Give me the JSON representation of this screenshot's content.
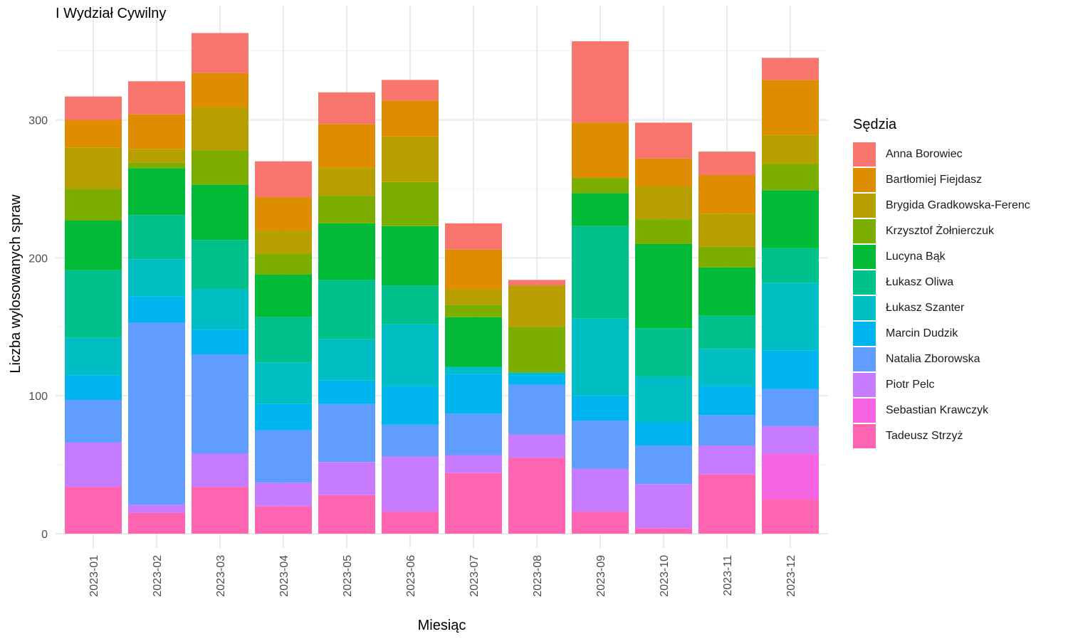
{
  "title": "I Wydział Cywilny",
  "chart_data": {
    "type": "bar",
    "stacked": true,
    "xlabel": "Miesiąc",
    "ylabel": "Liczba wylosowanych spraw",
    "ylim": [
      0,
      380
    ],
    "yticks": [
      0,
      100,
      200,
      300
    ],
    "grid": true,
    "legend_title": "Sędzia",
    "legend_position": "right",
    "categories": [
      "2023-01",
      "2023-02",
      "2023-03",
      "2023-04",
      "2023-05",
      "2023-06",
      "2023-07",
      "2023-08",
      "2023-09",
      "2023-10",
      "2023-11",
      "2023-12"
    ],
    "series": [
      {
        "name": "Anna Borowiec",
        "color": "#F8766D",
        "values": [
          17,
          24,
          29,
          26,
          23,
          15,
          19,
          4,
          59,
          26,
          17,
          16
        ]
      },
      {
        "name": "Bartłomiej Fiejdasz",
        "color": "#DE8C00",
        "values": [
          20,
          25,
          25,
          24,
          32,
          26,
          29,
          0,
          40,
          20,
          28,
          40
        ]
      },
      {
        "name": "Brygida Gradkowska-Ferenc",
        "color": "#B79F00",
        "values": [
          30,
          10,
          31,
          17,
          20,
          33,
          11,
          30,
          0,
          24,
          24,
          21
        ]
      },
      {
        "name": "Krzysztof Żołnierczuk",
        "color": "#7CAE00",
        "values": [
          23,
          4,
          25,
          15,
          20,
          32,
          9,
          33,
          11,
          18,
          15,
          19
        ]
      },
      {
        "name": "Lucyna Bąk",
        "color": "#00BA38",
        "values": [
          36,
          34,
          40,
          31,
          41,
          43,
          36,
          0,
          24,
          61,
          35,
          42
        ]
      },
      {
        "name": "Łukasz Oliwa",
        "color": "#00C08B",
        "values": [
          49,
          32,
          36,
          33,
          43,
          28,
          0,
          0,
          67,
          35,
          24,
          25
        ]
      },
      {
        "name": "Łukasz Szanter",
        "color": "#00BFC4",
        "values": [
          27,
          27,
          29,
          30,
          30,
          45,
          5,
          2,
          56,
          33,
          27,
          49
        ]
      },
      {
        "name": "Marcin Dudzik",
        "color": "#00B4F0",
        "values": [
          18,
          19,
          18,
          19,
          17,
          28,
          29,
          7,
          18,
          17,
          21,
          28
        ]
      },
      {
        "name": "Natalia Zborowska",
        "color": "#619CFF",
        "values": [
          31,
          132,
          72,
          38,
          42,
          23,
          30,
          36,
          35,
          28,
          22,
          27
        ]
      },
      {
        "name": "Piotr Pelc",
        "color": "#C77CFF",
        "values": [
          32,
          6,
          24,
          17,
          24,
          40,
          13,
          17,
          31,
          32,
          21,
          20
        ]
      },
      {
        "name": "Sebastian Krawczyk",
        "color": "#F564E3",
        "values": [
          0,
          0,
          0,
          0,
          0,
          0,
          0,
          0,
          0,
          0,
          0,
          33
        ]
      },
      {
        "name": "Tadeusz Strzyż",
        "color": "#FF64B0",
        "values": [
          34,
          15,
          34,
          20,
          28,
          16,
          44,
          55,
          16,
          4,
          43,
          25
        ]
      }
    ]
  }
}
